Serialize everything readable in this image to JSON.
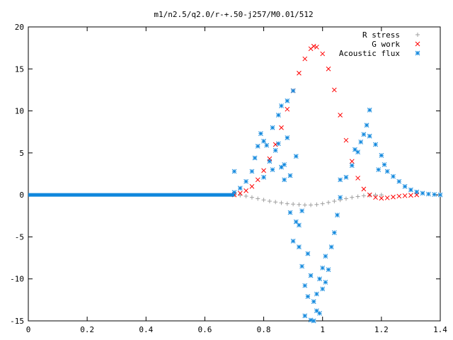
{
  "chart_data": {
    "type": "scatter",
    "title": "m1/n2.5/q2.0/r-+.50-j257/M0.01/512",
    "xlabel": "",
    "ylabel": "",
    "xlim": [
      0,
      1.4
    ],
    "ylim": [
      -15,
      20
    ],
    "xticks": [
      "0",
      "0.2",
      "0.4",
      "0.6",
      "0.8",
      "1",
      "1.2",
      "1.4"
    ],
    "yticks": [
      "-15",
      "-10",
      "-5",
      "0",
      "5",
      "10",
      "15",
      "20"
    ],
    "xtick_values": [
      0,
      0.2,
      0.4,
      0.6,
      0.8,
      1.0,
      1.2,
      1.4
    ],
    "ytick_values": [
      -15,
      -10,
      -5,
      0,
      5,
      10,
      15,
      20
    ],
    "grid": false,
    "legend_position": "top-right",
    "series": [
      {
        "name": "R stress",
        "color": "#a0a0a0",
        "marker": "plus",
        "points": [
          [
            0.7,
            0.0
          ],
          [
            0.72,
            -0.05
          ],
          [
            0.74,
            -0.15
          ],
          [
            0.76,
            -0.3
          ],
          [
            0.78,
            -0.45
          ],
          [
            0.8,
            -0.6
          ],
          [
            0.82,
            -0.75
          ],
          [
            0.84,
            -0.85
          ],
          [
            0.86,
            -0.95
          ],
          [
            0.88,
            -1.05
          ],
          [
            0.9,
            -1.1
          ],
          [
            0.92,
            -1.15
          ],
          [
            0.94,
            -1.2
          ],
          [
            0.96,
            -1.2
          ],
          [
            0.98,
            -1.15
          ],
          [
            1.0,
            -1.05
          ],
          [
            1.02,
            -0.9
          ],
          [
            1.04,
            -0.75
          ],
          [
            1.06,
            -0.6
          ],
          [
            1.08,
            -0.45
          ],
          [
            1.1,
            -0.3
          ],
          [
            1.12,
            -0.2
          ],
          [
            1.14,
            -0.1
          ],
          [
            1.16,
            -0.05
          ],
          [
            1.18,
            0.0
          ],
          [
            1.2,
            0.0
          ]
        ]
      },
      {
        "name": "G work",
        "color": "#ff0000",
        "marker": "cross",
        "points": [
          [
            0.7,
            0.0
          ],
          [
            0.72,
            0.2
          ],
          [
            0.74,
            0.5
          ],
          [
            0.76,
            1.0
          ],
          [
            0.78,
            1.8
          ],
          [
            0.8,
            2.9
          ],
          [
            0.82,
            4.3
          ],
          [
            0.84,
            6.0
          ],
          [
            0.86,
            8.0
          ],
          [
            0.88,
            10.2
          ],
          [
            0.9,
            12.4
          ],
          [
            0.92,
            14.5
          ],
          [
            0.94,
            16.2
          ],
          [
            0.96,
            17.4
          ],
          [
            0.97,
            17.7
          ],
          [
            0.98,
            17.6
          ],
          [
            1.0,
            16.8
          ],
          [
            1.02,
            15.0
          ],
          [
            1.04,
            12.5
          ],
          [
            1.06,
            9.5
          ],
          [
            1.08,
            6.5
          ],
          [
            1.1,
            4.0
          ],
          [
            1.12,
            2.0
          ],
          [
            1.14,
            0.7
          ],
          [
            1.16,
            0.0
          ],
          [
            1.18,
            -0.3
          ],
          [
            1.2,
            -0.4
          ],
          [
            1.22,
            -0.35
          ],
          [
            1.24,
            -0.25
          ],
          [
            1.26,
            -0.15
          ],
          [
            1.28,
            -0.1
          ],
          [
            1.3,
            -0.05
          ],
          [
            1.32,
            0.0
          ]
        ]
      },
      {
        "name": "Acoustic flux",
        "color": "#0f87dd",
        "marker": "star",
        "points": [
          [
            0.7,
            2.8
          ],
          [
            0.7,
            0.3
          ],
          [
            0.72,
            0.8
          ],
          [
            0.74,
            1.6
          ],
          [
            0.76,
            2.8
          ],
          [
            0.77,
            4.4
          ],
          [
            0.78,
            5.8
          ],
          [
            0.79,
            7.3
          ],
          [
            0.8,
            6.4
          ],
          [
            0.8,
            2.1
          ],
          [
            0.81,
            5.9
          ],
          [
            0.82,
            4.0
          ],
          [
            0.83,
            8.0
          ],
          [
            0.83,
            3.0
          ],
          [
            0.84,
            5.3
          ],
          [
            0.85,
            6.1
          ],
          [
            0.85,
            9.5
          ],
          [
            0.86,
            3.3
          ],
          [
            0.86,
            10.6
          ],
          [
            0.87,
            1.8
          ],
          [
            0.87,
            3.6
          ],
          [
            0.88,
            6.8
          ],
          [
            0.88,
            11.2
          ],
          [
            0.89,
            -2.1
          ],
          [
            0.89,
            2.3
          ],
          [
            0.9,
            12.4
          ],
          [
            0.9,
            -5.5
          ],
          [
            0.91,
            -3.2
          ],
          [
            0.91,
            4.6
          ],
          [
            0.92,
            -6.2
          ],
          [
            0.92,
            -3.6
          ],
          [
            0.93,
            -8.5
          ],
          [
            0.93,
            -1.9
          ],
          [
            0.94,
            -10.8
          ],
          [
            0.94,
            -14.4
          ],
          [
            0.95,
            -12.1
          ],
          [
            0.95,
            -7.0
          ],
          [
            0.96,
            -14.9
          ],
          [
            0.96,
            -9.6
          ],
          [
            0.97,
            -12.7
          ],
          [
            0.97,
            -15.0
          ],
          [
            0.98,
            -11.8
          ],
          [
            0.98,
            -13.8
          ],
          [
            0.99,
            -10.0
          ],
          [
            0.99,
            -14.1
          ],
          [
            1.0,
            -11.2
          ],
          [
            1.0,
            -8.7
          ],
          [
            1.01,
            -10.4
          ],
          [
            1.01,
            -7.3
          ],
          [
            1.02,
            -8.9
          ],
          [
            1.03,
            -6.2
          ],
          [
            1.04,
            -4.5
          ],
          [
            1.05,
            -2.4
          ],
          [
            1.06,
            -0.3
          ],
          [
            1.06,
            1.8
          ],
          [
            1.08,
            2.1
          ],
          [
            1.1,
            3.5
          ],
          [
            1.11,
            5.4
          ],
          [
            1.12,
            5.1
          ],
          [
            1.13,
            6.3
          ],
          [
            1.14,
            7.2
          ],
          [
            1.15,
            8.3
          ],
          [
            1.16,
            7.0
          ],
          [
            1.16,
            10.1
          ],
          [
            1.18,
            6.0
          ],
          [
            1.19,
            3.0
          ],
          [
            1.2,
            4.7
          ],
          [
            1.21,
            3.6
          ],
          [
            1.22,
            2.8
          ],
          [
            1.24,
            2.2
          ],
          [
            1.26,
            1.6
          ],
          [
            1.28,
            1.0
          ],
          [
            1.3,
            0.6
          ],
          [
            1.32,
            0.35
          ],
          [
            1.34,
            0.2
          ],
          [
            1.36,
            0.1
          ],
          [
            1.38,
            0.05
          ],
          [
            1.4,
            0.0
          ]
        ]
      }
    ]
  }
}
